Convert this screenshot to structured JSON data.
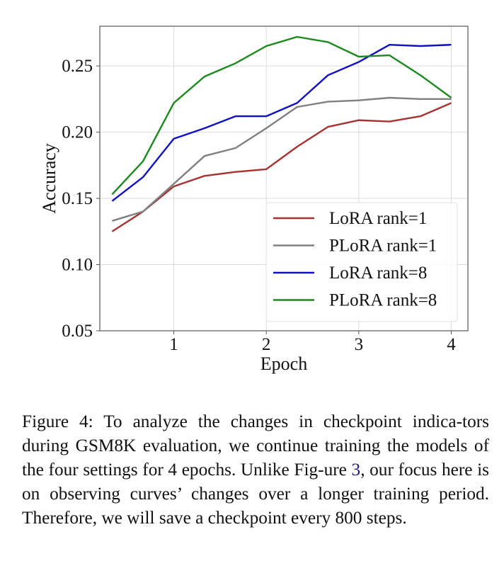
{
  "chart_data": {
    "type": "line",
    "title": "",
    "xlabel": "Epoch",
    "ylabel": "Accuracy",
    "xlim": [
      0.2,
      4.18
    ],
    "ylim": [
      0.05,
      0.28
    ],
    "xticks": [
      1,
      2,
      3,
      4
    ],
    "xtick_labels": [
      "1",
      "2",
      "3",
      "4"
    ],
    "yticks": [
      0.05,
      0.1,
      0.15,
      0.2,
      0.25
    ],
    "ytick_labels": [
      "0.05",
      "0.10",
      "0.15",
      "0.20",
      "0.25"
    ],
    "grid": true,
    "legend_position": "lower-right",
    "x": [
      0.333,
      0.667,
      1.0,
      1.333,
      1.667,
      2.0,
      2.333,
      2.667,
      3.0,
      3.333,
      3.667,
      4.0
    ],
    "series": [
      {
        "name": "LoRA rank=1",
        "color": "#a83232",
        "values": [
          0.125,
          0.14,
          0.159,
          0.167,
          0.17,
          0.172,
          0.189,
          0.204,
          0.209,
          0.208,
          0.212,
          0.222
        ]
      },
      {
        "name": "PLoRA rank=1",
        "color": "#808080",
        "values": [
          0.133,
          0.14,
          0.161,
          0.182,
          0.188,
          0.203,
          0.219,
          0.223,
          0.224,
          0.226,
          0.225,
          0.225
        ]
      },
      {
        "name": "LoRA rank=8",
        "color": "#1010c8",
        "values": [
          0.148,
          0.166,
          0.195,
          0.203,
          0.212,
          0.212,
          0.222,
          0.243,
          0.253,
          0.266,
          0.265,
          0.266
        ]
      },
      {
        "name": "PLoRA rank=8",
        "color": "#1a8a1a",
        "values": [
          0.153,
          0.178,
          0.222,
          0.242,
          0.252,
          0.265,
          0.272,
          0.268,
          0.257,
          0.258,
          0.243,
          0.226
        ]
      }
    ]
  },
  "caption": {
    "prefix": "Figure 4: To analyze the changes in checkpoint indica-tors during GSM8K evaluation, we continue training the models of the four settings for 4 epochs. Unlike Fig-ure ",
    "ref": "3",
    "suffix": ", our focus here is on observing curves’ changes over a longer training period. Therefore, we will save a checkpoint every 800 steps."
  }
}
